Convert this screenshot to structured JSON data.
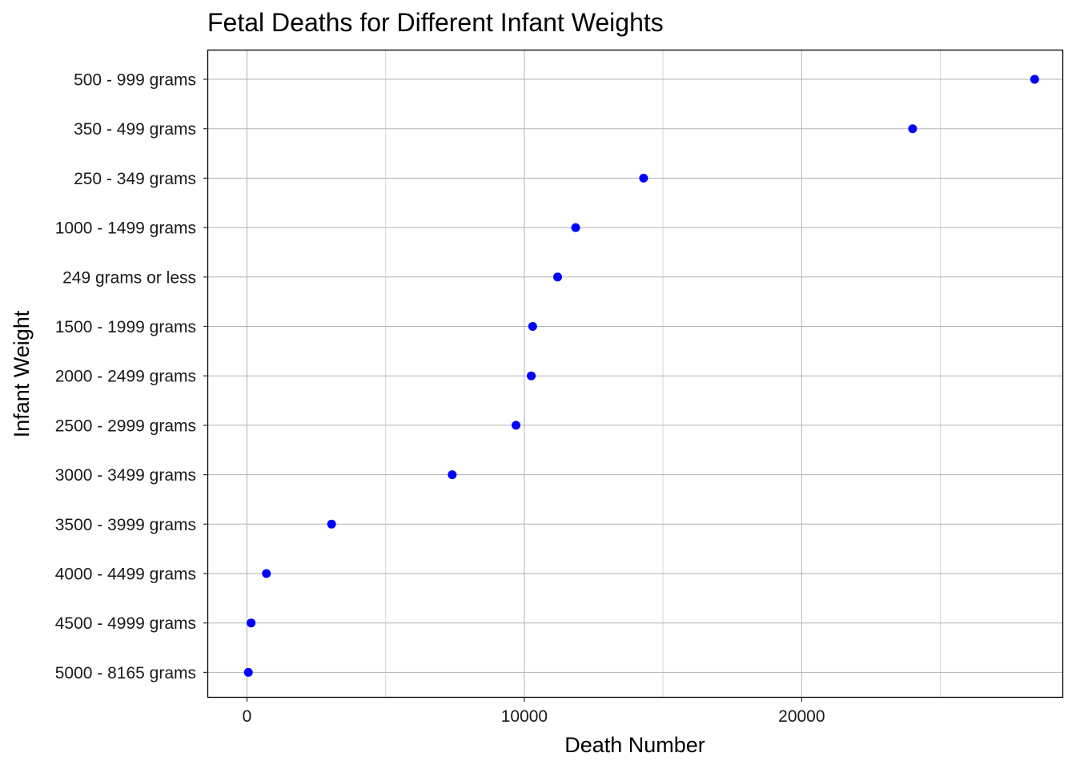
{
  "chart_data": {
    "type": "scatter",
    "title": "Fetal Deaths for Different Infant Weights",
    "xlabel": "Death Number",
    "ylabel": "Infant Weight",
    "xlim": [
      -1400,
      29400
    ],
    "x_ticks": [
      0,
      10000,
      20000
    ],
    "x_tick_labels": [
      "0",
      "10000",
      "20000"
    ],
    "x_minor_ticks": [
      5000,
      15000,
      25000
    ],
    "grid": true,
    "legend": "none",
    "point_color": "#0000ff",
    "categories": [
      "500 - 999 grams",
      "350 - 499 grams",
      "250 - 349 grams",
      "1000 - 1499 grams",
      "249 grams or less",
      "1500 - 1999 grams",
      "2000 - 2499 grams",
      "2500 - 2999 grams",
      "3000 - 3499 grams",
      "3500 - 3999 grams",
      "4000 - 4499 grams",
      "4500 - 4999 grams",
      "5000 - 8165 grams"
    ],
    "values": [
      28400,
      24000,
      14300,
      11850,
      11200,
      10300,
      10250,
      9700,
      7400,
      3050,
      700,
      150,
      50
    ]
  }
}
